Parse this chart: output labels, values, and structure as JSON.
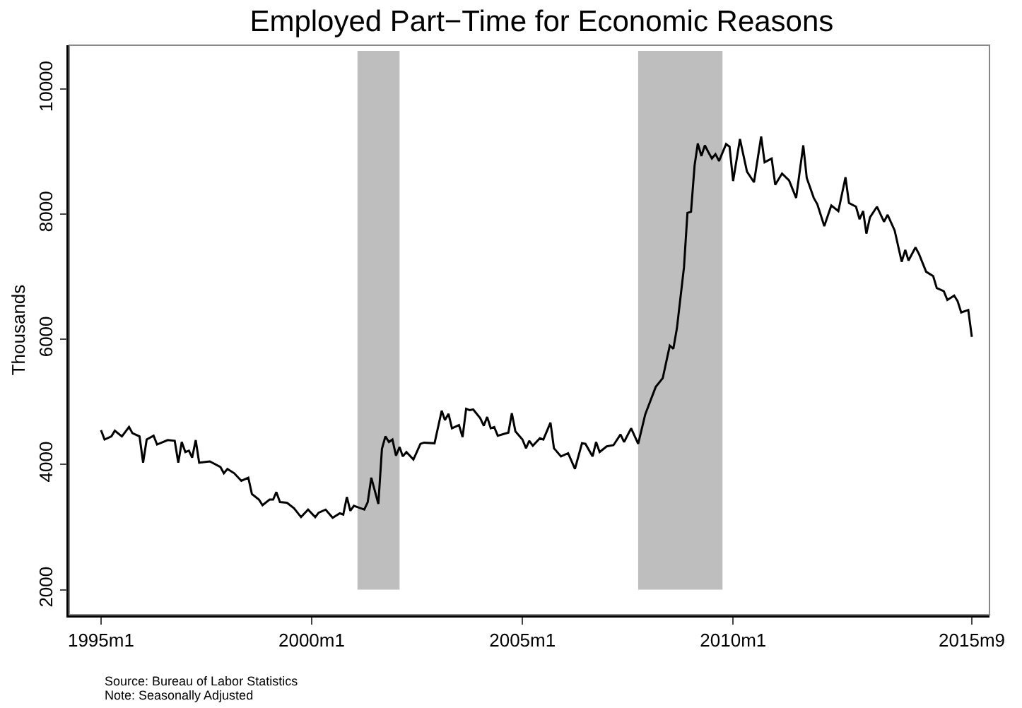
{
  "chart_data": {
    "type": "line",
    "title": "Employed Part−Time for Economic Reasons",
    "ylabel": "Thousands",
    "x": [
      "1995-01",
      "1995-02",
      "1995-04",
      "1995-05",
      "1995-07",
      "1995-09",
      "1995-10",
      "1995-12",
      "1996-01",
      "1996-02",
      "1996-04",
      "1996-05",
      "1996-08",
      "1996-10",
      "1996-11",
      "1996-12",
      "1997-01",
      "1997-02",
      "1997-03",
      "1997-04",
      "1997-05",
      "1997-08",
      "1997-11",
      "1997-12",
      "1998-01",
      "1998-03",
      "1998-05",
      "1998-07",
      "1998-08",
      "1998-10",
      "1998-11",
      "1999-01",
      "1999-02",
      "1999-03",
      "1999-04",
      "1999-06",
      "1999-08",
      "1999-10",
      "1999-12",
      "2000-02",
      "2000-03",
      "2000-05",
      "2000-07",
      "2000-09",
      "2000-10",
      "2000-11",
      "2000-12",
      "2001-01",
      "2001-04",
      "2001-05",
      "2001-06",
      "2001-08",
      "2001-09",
      "2001-10",
      "2001-11",
      "2001-12",
      "2002-01",
      "2002-02",
      "2002-03",
      "2002-04",
      "2002-06",
      "2002-08",
      "2002-09",
      "2002-12",
      "2003-02",
      "2003-03",
      "2003-04",
      "2003-05",
      "2003-07",
      "2003-08",
      "2003-09",
      "2003-10",
      "2003-11",
      "2004-01",
      "2004-02",
      "2004-03",
      "2004-04",
      "2004-05",
      "2004-06",
      "2004-09",
      "2004-10",
      "2004-11",
      "2005-01",
      "2005-02",
      "2005-03",
      "2005-04",
      "2005-06",
      "2005-07",
      "2005-09",
      "2005-10",
      "2005-12",
      "2006-02",
      "2006-04",
      "2006-06",
      "2006-07",
      "2006-09",
      "2006-10",
      "2006-11",
      "2007-01",
      "2007-03",
      "2007-05",
      "2007-06",
      "2007-08",
      "2007-10",
      "2007-12",
      "2008-03",
      "2008-05",
      "2008-07",
      "2008-08",
      "2008-09",
      "2008-11",
      "2008-12",
      "2009-01",
      "2009-02",
      "2009-03",
      "2009-04",
      "2009-05",
      "2009-06",
      "2009-07",
      "2009-08",
      "2009-09",
      "2009-11",
      "2009-12",
      "2010-01",
      "2010-03",
      "2010-05",
      "2010-07",
      "2010-09",
      "2010-10",
      "2010-12",
      "2011-01",
      "2011-03",
      "2011-05",
      "2011-07",
      "2011-09",
      "2011-10",
      "2011-12",
      "2012-01",
      "2012-03",
      "2012-05",
      "2012-07",
      "2012-09",
      "2012-10",
      "2012-12",
      "2013-01",
      "2013-02",
      "2013-03",
      "2013-04",
      "2013-06",
      "2013-08",
      "2013-09",
      "2013-11",
      "2014-01",
      "2014-02",
      "2014-03",
      "2014-05",
      "2014-06",
      "2014-08",
      "2014-10",
      "2014-11",
      "2015-01",
      "2015-02",
      "2015-04",
      "2015-05",
      "2015-06",
      "2015-08",
      "2015-09"
    ],
    "series": [
      {
        "color": "#000000",
        "values": [
          4550,
          4400,
          4450,
          4540,
          4450,
          4600,
          4500,
          4450,
          4030,
          4400,
          4460,
          4320,
          4390,
          4380,
          4030,
          4360,
          4200,
          4220,
          4110,
          4390,
          4030,
          4050,
          3960,
          3860,
          3930,
          3860,
          3740,
          3790,
          3530,
          3440,
          3350,
          3440,
          3440,
          3560,
          3400,
          3390,
          3300,
          3160,
          3280,
          3160,
          3230,
          3280,
          3150,
          3220,
          3200,
          3480,
          3260,
          3340,
          3280,
          3400,
          3790,
          3370,
          4250,
          4450,
          4360,
          4400,
          4140,
          4280,
          4130,
          4200,
          4080,
          4330,
          4350,
          4340,
          4860,
          4710,
          4810,
          4580,
          4630,
          4440,
          4890,
          4870,
          4880,
          4740,
          4620,
          4760,
          4580,
          4600,
          4460,
          4510,
          4820,
          4530,
          4400,
          4260,
          4380,
          4300,
          4420,
          4400,
          4670,
          4260,
          4130,
          4180,
          3930,
          4340,
          4330,
          4130,
          4360,
          4200,
          4290,
          4310,
          4480,
          4360,
          4580,
          4330,
          4800,
          5240,
          5380,
          5900,
          5850,
          6180,
          7150,
          8020,
          8040,
          8780,
          9130,
          8930,
          9100,
          8990,
          8890,
          8960,
          8850,
          9120,
          9080,
          8530,
          9200,
          8680,
          8510,
          9240,
          8830,
          8890,
          8470,
          8650,
          8540,
          8260,
          9100,
          8580,
          8260,
          8160,
          7810,
          8140,
          8050,
          8590,
          8180,
          8120,
          7920,
          8050,
          7690,
          7950,
          8120,
          7880,
          7990,
          7740,
          7240,
          7430,
          7260,
          7470,
          7360,
          7080,
          7010,
          6820,
          6770,
          6630,
          6700,
          6610,
          6430,
          6470,
          6040
        ]
      }
    ],
    "xlim": [
      "1994-04",
      "2016-02"
    ],
    "xticks": [
      {
        "value": "1995-01",
        "label": "1995m1"
      },
      {
        "value": "2000-01",
        "label": "2000m1"
      },
      {
        "value": "2005-01",
        "label": "2005m1"
      },
      {
        "value": "2010-01",
        "label": "2010m1"
      },
      {
        "value": "2015-09",
        "label": "2015m9"
      }
    ],
    "ylim": [
      1600,
      10700
    ],
    "yticks": [
      2000,
      4000,
      6000,
      8000,
      10000
    ],
    "bands": [
      {
        "axis": "x",
        "from": "2001-02",
        "to": "2002-02",
        "color": "#bebebe"
      },
      {
        "axis": "x",
        "from": "2007-10",
        "to": "2009-10",
        "color": "#bebebe"
      }
    ],
    "annotations": [
      "Source: Bureau of Labor Statistics",
      "Note: Seasonally Adjusted"
    ],
    "grid": false,
    "marker": "none",
    "line_style": "solid"
  }
}
